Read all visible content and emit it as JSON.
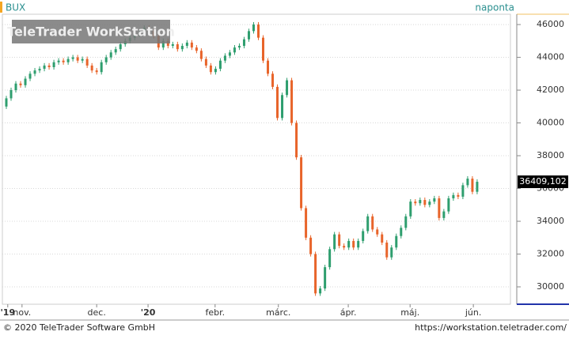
{
  "chart_data": {
    "type": "candlestick",
    "title": "BUX",
    "subtitle": "naponta",
    "watermark": "TeleTrader WorkStation",
    "ylim": [
      28940,
      46630
    ],
    "yticks": [
      30000,
      32000,
      34000,
      36000,
      38000,
      40000,
      42000,
      44000,
      46000
    ],
    "xlim": [
      -0.83,
      106.0
    ],
    "xticks": [
      {
        "value": 0.3,
        "label": "'19"
      },
      {
        "value": 3.3,
        "label": "nov."
      },
      {
        "value": 19,
        "label": "dec."
      },
      {
        "value": 29.8,
        "label": "'20"
      },
      {
        "value": 43.9,
        "label": "febr."
      },
      {
        "value": 57.2,
        "label": "márc."
      },
      {
        "value": 71.9,
        "label": "ápr."
      },
      {
        "value": 84.9,
        "label": "máj."
      },
      {
        "value": 98.2,
        "label": "jún."
      }
    ],
    "grid": true,
    "up_color": "#2e9e6e",
    "down_color": "#e8642a",
    "last_price": 36409.102,
    "last_price_label": "36409,102",
    "open": [
      41000,
      41500,
      42000,
      42400,
      42300,
      42700,
      43000,
      43200,
      43300,
      43500,
      43400,
      43700,
      43800,
      43700,
      43900,
      44000,
      43800,
      43900,
      43500,
      43200,
      43100,
      43700,
      44000,
      44300,
      44500,
      44800,
      45000,
      45200,
      45400,
      45500,
      45800,
      45600,
      45300,
      44600,
      45000,
      44700,
      44800,
      44500,
      44700,
      44900,
      44600,
      44400,
      43900,
      43500,
      43100,
      43300,
      43800,
      44100,
      44300,
      44600,
      44700,
      45100,
      45600,
      46000,
      45200,
      43800,
      43000,
      42200,
      40300,
      41700,
      42600,
      40000,
      37900,
      34800,
      33000,
      32000,
      29600,
      29900,
      31200,
      32300,
      33200,
      32500,
      32400,
      32800,
      32400,
      32800,
      33400,
      34300,
      33500,
      33200,
      32700,
      31800,
      32400,
      33100,
      33600,
      34300,
      35200,
      35100,
      35300,
      35000,
      35200,
      35400,
      34200,
      34600,
      35400,
      35600,
      35500,
      36200,
      36600,
      35800
    ],
    "high": [
      41650,
      42150,
      42550,
      42550,
      42850,
      43150,
      43350,
      43450,
      43650,
      43650,
      43850,
      43950,
      43950,
      44050,
      44150,
      44150,
      44050,
      44050,
      43650,
      43350,
      43850,
      44150,
      44450,
      44650,
      44950,
      45150,
      45350,
      45550,
      45650,
      45950,
      45950,
      45750,
      45450,
      45150,
      45150,
      44950,
      44950,
      44850,
      45050,
      45050,
      44750,
      44550,
      44050,
      43650,
      43450,
      43950,
      44250,
      44450,
      44750,
      44850,
      45250,
      45750,
      46150,
      46150,
      45350,
      43950,
      43150,
      42350,
      41850,
      42750,
      42750,
      40150,
      38050,
      34950,
      33150,
      32150,
      30050,
      31350,
      32450,
      33350,
      33350,
      32650,
      32950,
      32950,
      32950,
      33550,
      34450,
      34450,
      33650,
      33350,
      32850,
      32550,
      33250,
      33750,
      34450,
      35350,
      35350,
      35450,
      35450,
      35350,
      35550,
      35550,
      34750,
      35550,
      35750,
      35750,
      36350,
      36750,
      36750,
      36560
    ],
    "low": [
      40850,
      41350,
      41850,
      42150,
      42150,
      42550,
      42850,
      43050,
      43150,
      43250,
      43250,
      43550,
      43550,
      43550,
      43750,
      43650,
      43650,
      43350,
      43050,
      42950,
      42950,
      43550,
      43850,
      44150,
      44350,
      44650,
      44850,
      45050,
      45250,
      45350,
      45450,
      45150,
      44450,
      44450,
      44550,
      44550,
      44350,
      44350,
      44550,
      44450,
      44250,
      43750,
      43350,
      42950,
      42950,
      43150,
      43650,
      43950,
      44150,
      44450,
      44550,
      44950,
      45450,
      45050,
      43650,
      42850,
      42050,
      40150,
      40150,
      41550,
      39850,
      37750,
      34650,
      32850,
      31850,
      29450,
      29450,
      29750,
      31050,
      32150,
      32350,
      32250,
      32250,
      32250,
      32250,
      32650,
      33250,
      33350,
      33050,
      32550,
      31650,
      31650,
      32250,
      32950,
      33450,
      34150,
      34950,
      34950,
      34850,
      34850,
      35050,
      34050,
      34050,
      34450,
      35250,
      35350,
      35350,
      36050,
      35650,
      35650
    ],
    "close": [
      41500,
      42000,
      42400,
      42300,
      42700,
      43000,
      43200,
      43300,
      43500,
      43400,
      43700,
      43800,
      43700,
      43900,
      44000,
      43800,
      43900,
      43500,
      43200,
      43100,
      43700,
      44000,
      44300,
      44500,
      44800,
      45000,
      45200,
      45400,
      45500,
      45800,
      45600,
      45300,
      44600,
      45000,
      44700,
      44800,
      44500,
      44700,
      44900,
      44600,
      44400,
      43900,
      43500,
      43100,
      43300,
      43800,
      44100,
      44300,
      44600,
      44700,
      45100,
      45600,
      46000,
      45200,
      43800,
      43000,
      42200,
      40300,
      41700,
      42600,
      40000,
      37900,
      34800,
      33000,
      32000,
      29600,
      29900,
      31200,
      32300,
      33200,
      32500,
      32400,
      32800,
      32400,
      32800,
      33400,
      34300,
      33500,
      33200,
      32700,
      31800,
      32400,
      33100,
      33600,
      34300,
      35200,
      35100,
      35300,
      35000,
      35200,
      35400,
      34200,
      34600,
      35400,
      35600,
      35500,
      36200,
      36600,
      35800,
      36409
    ]
  },
  "footer": {
    "copyright": "© 2020 TeleTrader Software GmbH",
    "url": "https://workstation.teletrader.com/"
  }
}
